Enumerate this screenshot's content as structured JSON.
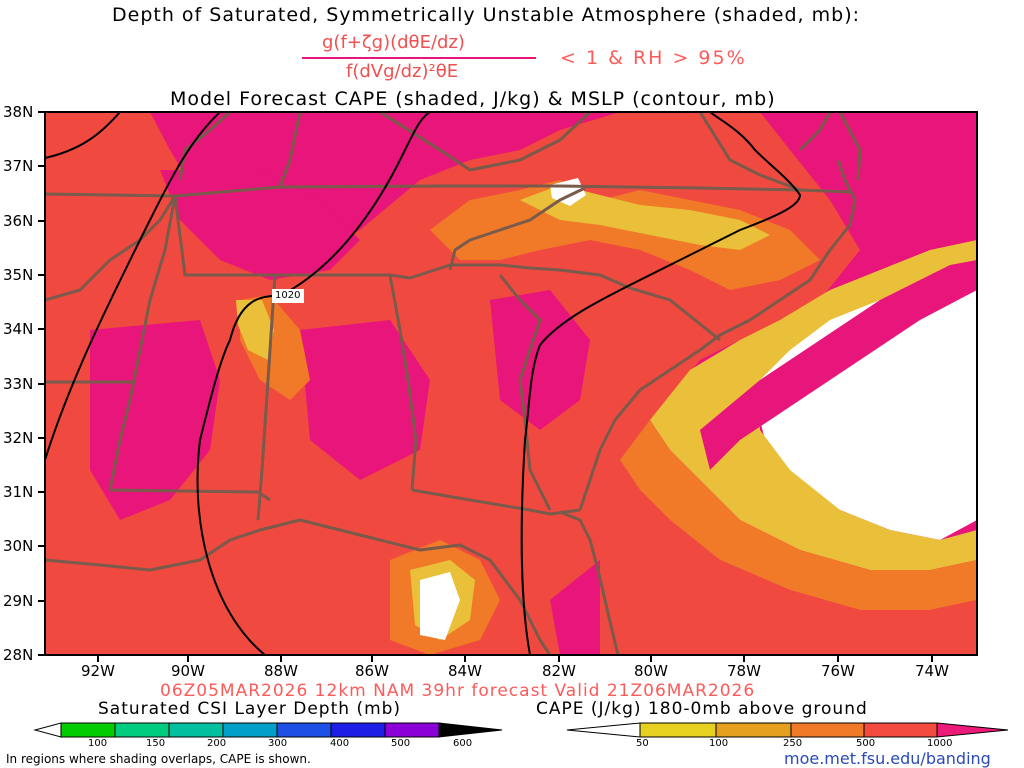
{
  "header": {
    "title_line1": "Depth of Saturated, Symmetrically Unstable Atmosphere (shaded, mb):",
    "formula_numerator": "g(f+ζg)(dθE/dz)",
    "formula_denominator": "f(dVg/dz)²θE",
    "formula_condition": "< 1 & RH > 95%",
    "title_line3": "Model Forecast CAPE (shaded, J/kg) & MSLP (contour, mb)"
  },
  "map": {
    "lat_labels": [
      "38N",
      "37N",
      "36N",
      "35N",
      "34N",
      "33N",
      "32N",
      "31N",
      "30N",
      "29N",
      "28N"
    ],
    "lon_labels": [
      "92W",
      "90W",
      "88W",
      "86W",
      "84W",
      "82W",
      "80W",
      "78W",
      "76W",
      "74W"
    ],
    "contour_label": "1020"
  },
  "valid_line": "06Z05MAR2026 12km NAM 39hr forecast Valid 21Z06MAR2026",
  "csi_bar": {
    "title": "Saturated CSI Layer Depth (mb)",
    "ticks": [
      "100",
      "150",
      "200",
      "300",
      "400",
      "500",
      "600"
    ],
    "colors": [
      "#00cc00",
      "#00cc80",
      "#00c0a0",
      "#00a0c8",
      "#1e50e6",
      "#1e1ee6",
      "#8c00d8"
    ]
  },
  "cape_bar": {
    "title": "CAPE (J/kg) 180-0mb above ground",
    "ticks": [
      "50",
      "100",
      "250",
      "500",
      "1000"
    ],
    "colors": [
      "#e6d020",
      "#e6a020",
      "#f07a28",
      "#f24a3e",
      "#ec1a78"
    ]
  },
  "footer": {
    "note": "In regions where shading overlaps, CAPE is shown.",
    "url": "moe.met.fsu.edu/banding"
  },
  "colors": {
    "cape_high": "#e8157a",
    "cape_mid": "#f04a40",
    "cape_orange": "#f07a28",
    "cape_yellow": "#eac03a",
    "title_red": "#ff5a5a",
    "border": "#7a5a4a"
  }
}
